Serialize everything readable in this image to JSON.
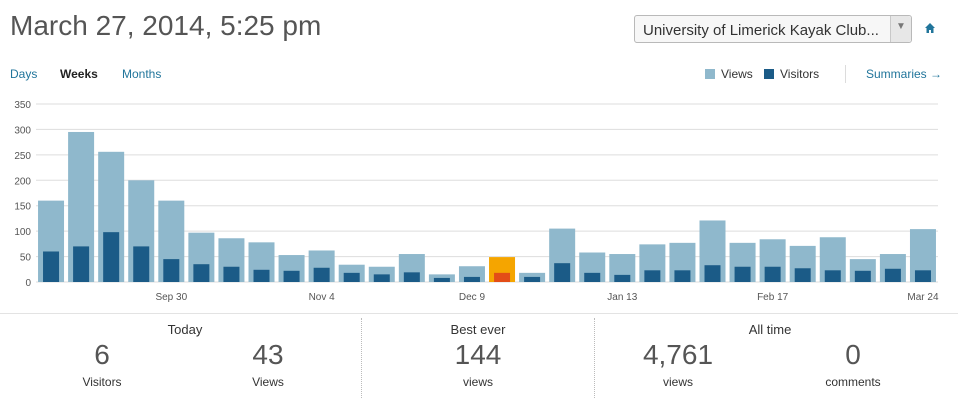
{
  "header": {
    "title": "March 27, 2014, 5:25 pm",
    "site_selector": "University of Limerick Kayak Club...",
    "home_icon": "home-icon"
  },
  "tabs": [
    {
      "label": "Days",
      "active": false
    },
    {
      "label": "Weeks",
      "active": true
    },
    {
      "label": "Months",
      "active": false
    }
  ],
  "legend": {
    "views_label": "Views",
    "visitors_label": "Visitors",
    "summaries_label": "Summaries →"
  },
  "colors": {
    "views": "#8fb8cc",
    "visitors": "#1b5b87",
    "highlight_views": "#f5a500",
    "highlight_visitors": "#e34d17",
    "grid": "#dddddd",
    "link": "#21759b"
  },
  "chart_data": {
    "type": "bar",
    "y_ticks": [
      0,
      50,
      100,
      150,
      200,
      250,
      300,
      350
    ],
    "ylim": [
      0,
      350
    ],
    "grid": true,
    "x_tick_labels": [
      {
        "index": 4,
        "label": "Sep 30"
      },
      {
        "index": 9,
        "label": "Nov 4"
      },
      {
        "index": 14,
        "label": "Dec 9"
      },
      {
        "index": 19,
        "label": "Jan 13"
      },
      {
        "index": 24,
        "label": "Feb 17"
      },
      {
        "index": 29,
        "label": "Mar 24"
      }
    ],
    "highlight_index": 15,
    "series": [
      {
        "name": "Views",
        "values": [
          160,
          295,
          256,
          200,
          160,
          97,
          86,
          78,
          53,
          62,
          34,
          30,
          55,
          15,
          31,
          49,
          18,
          105,
          58,
          55,
          74,
          77,
          121,
          77,
          84,
          71,
          88,
          45,
          55,
          104
        ]
      },
      {
        "name": "Visitors",
        "values": [
          60,
          70,
          98,
          70,
          45,
          35,
          30,
          24,
          22,
          28,
          18,
          15,
          19,
          8,
          10,
          18,
          10,
          37,
          18,
          14,
          23,
          23,
          33,
          30,
          30,
          27,
          23,
          22,
          26,
          23
        ]
      }
    ]
  },
  "stats": {
    "today": {
      "heading": "Today",
      "visitors": "6",
      "visitors_label": "Visitors",
      "views": "43",
      "views_label": "Views"
    },
    "best": {
      "heading": "Best ever",
      "views": "144",
      "views_label": "views"
    },
    "all_time": {
      "heading": "All time",
      "views": "4,761",
      "views_label": "views",
      "comments": "0",
      "comments_label": "comments"
    }
  }
}
